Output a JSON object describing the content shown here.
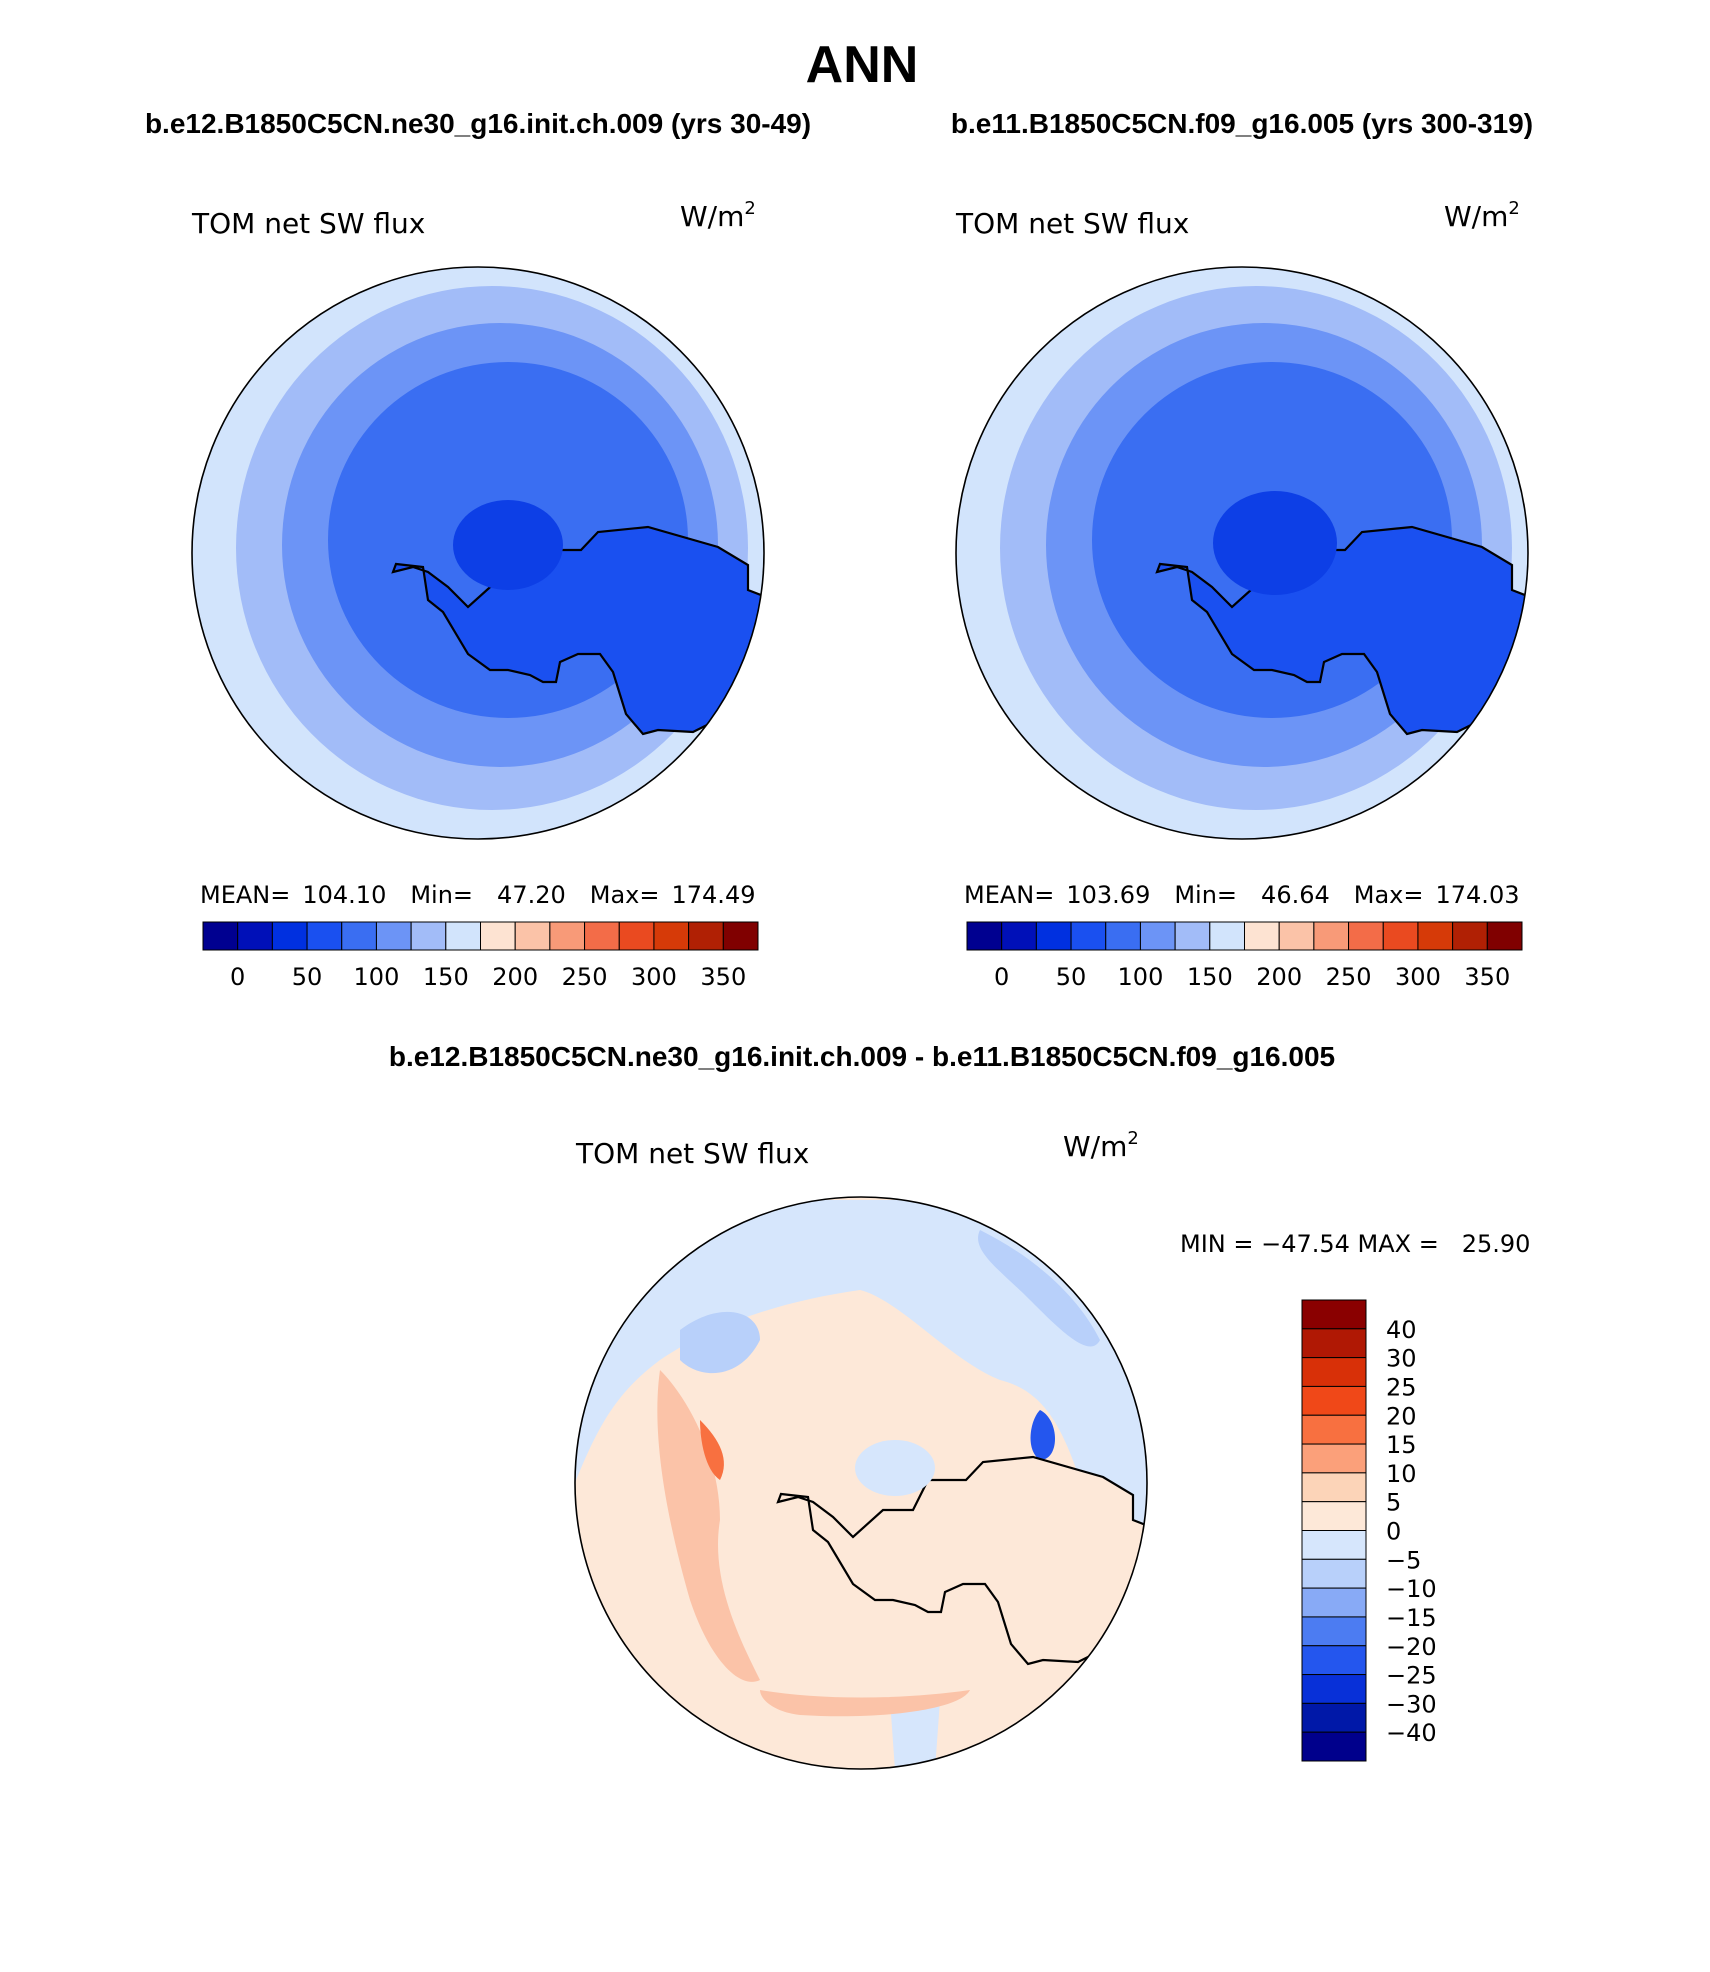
{
  "title": "ANN",
  "panels": [
    {
      "case_title": "b.e12.B1850C5CN.ne30_g16.init.ch.009 (yrs 30-49)",
      "variable": "TOM net SW flux",
      "units": "W/m²",
      "units_base": "W/m",
      "units_exp": "2",
      "stats": {
        "mean_label": "MEAN=",
        "mean": "104.10",
        "min_label": "Min=",
        "min": "47.20",
        "max_label": "Max=",
        "max": "174.49"
      }
    },
    {
      "case_title": "b.e11.B1850C5CN.f09_g16.005 (yrs 300-319)",
      "variable": "TOM net SW flux",
      "units": "W/m²",
      "units_base": "W/m",
      "units_exp": "2",
      "stats": {
        "mean_label": "MEAN=",
        "mean": "103.69",
        "min_label": "Min=",
        "min": "46.64",
        "max_label": "Max=",
        "max": "174.03"
      }
    }
  ],
  "diff_panel": {
    "case_title": "b.e12.B1850C5CN.ne30_g16.init.ch.009 - b.e11.B1850C5CN.f09_g16.005",
    "variable": "TOM net SW flux",
    "units_base": "W/m",
    "units_exp": "2",
    "minmax_text": "MIN = −47.54 MAX =   25.90"
  },
  "chart_data": [
    {
      "type": "heatmap",
      "projection": "south polar stereographic",
      "field": "TOM net SW flux",
      "units": "W/m²",
      "mean": 104.1,
      "min": 47.2,
      "max": 174.49,
      "colorbar": {
        "orientation": "horizontal",
        "levels": [
          0,
          25,
          50,
          75,
          100,
          125,
          150,
          175,
          200,
          225,
          250,
          275,
          300,
          325,
          350
        ],
        "tick_labels": [
          "0",
          "50",
          "100",
          "150",
          "200",
          "250",
          "300",
          "350"
        ],
        "colors": [
          "#000090",
          "#0010b8",
          "#0030e0",
          "#1a50f0",
          "#3a6ef2",
          "#6c94f6",
          "#a2bcf8",
          "#d2e4fc",
          "#fde3d2",
          "#fbc3a8",
          "#f89a78",
          "#f36c48",
          "#ea4a20",
          "#d63a08",
          "#b02004",
          "#800000"
        ]
      }
    },
    {
      "type": "heatmap",
      "projection": "south polar stereographic",
      "field": "TOM net SW flux",
      "units": "W/m²",
      "mean": 103.69,
      "min": 46.64,
      "max": 174.03,
      "colorbar": {
        "orientation": "horizontal",
        "levels": [
          0,
          25,
          50,
          75,
          100,
          125,
          150,
          175,
          200,
          225,
          250,
          275,
          300,
          325,
          350
        ],
        "tick_labels": [
          "0",
          "50",
          "100",
          "150",
          "200",
          "250",
          "300",
          "350"
        ],
        "colors": [
          "#000090",
          "#0010b8",
          "#0030e0",
          "#1a50f0",
          "#3a6ef2",
          "#6c94f6",
          "#a2bcf8",
          "#d2e4fc",
          "#fde3d2",
          "#fbc3a8",
          "#f89a78",
          "#f36c48",
          "#ea4a20",
          "#d63a08",
          "#b02004",
          "#800000"
        ]
      }
    },
    {
      "type": "heatmap",
      "projection": "south polar stereographic",
      "field": "TOM net SW flux",
      "units": "W/m²",
      "min": -47.54,
      "max": 25.9,
      "colorbar": {
        "orientation": "vertical",
        "levels": [
          -40,
          -30,
          -25,
          -20,
          -15,
          -10,
          -5,
          0,
          5,
          10,
          15,
          20,
          25,
          30,
          40
        ],
        "tick_labels": [
          "40",
          "30",
          "25",
          "20",
          "15",
          "10",
          "5",
          "0",
          "−5",
          "−10",
          "−15",
          "−20",
          "−25",
          "−30",
          "−40"
        ],
        "colors_top_to_bottom": [
          "#8a0000",
          "#b01804",
          "#d83008",
          "#f04818",
          "#f87040",
          "#fba07a",
          "#fcd4b8",
          "#fde8d8",
          "#d6e6fc",
          "#b8d0fa",
          "#88aaf6",
          "#4c7cf2",
          "#2456ee",
          "#0830d8",
          "#0018a8",
          "#00008c"
        ]
      }
    }
  ]
}
